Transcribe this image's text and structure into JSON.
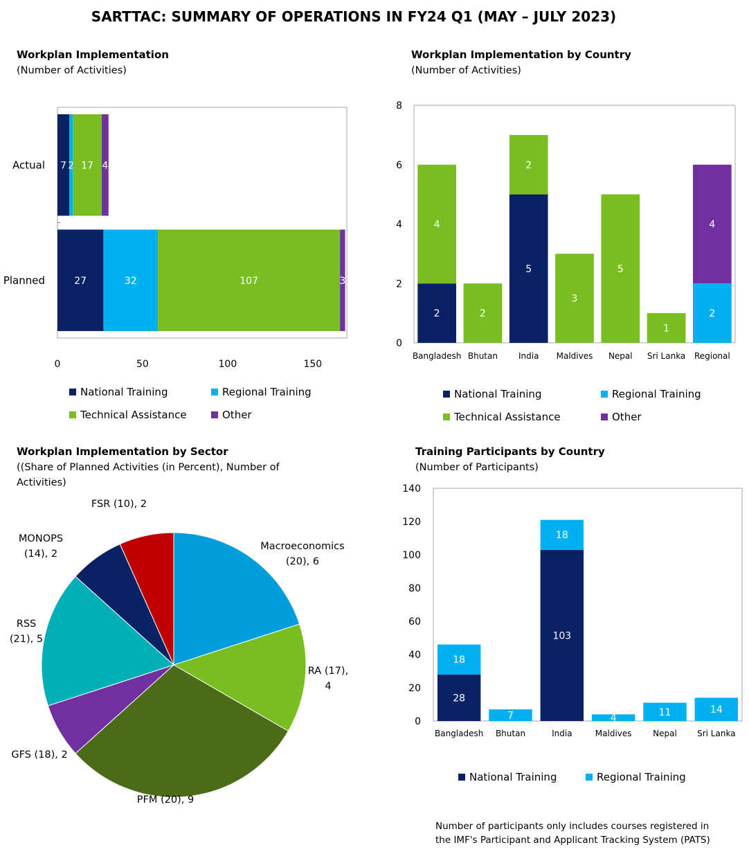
{
  "title": "SARTTAC: SUMMARY OF OPERATIONS IN FY24 Q1 (MAY – JULY 2023)",
  "colors": {
    "national": "#0a2263",
    "regional": "#00b0f0",
    "ta": "#78be20",
    "other": "#7030a0",
    "axis": "#808080"
  },
  "chart_data": [
    {
      "id": "implementation",
      "type": "bar",
      "orientation": "horizontal",
      "stacked": true,
      "title": "Workplan Implementation",
      "subtitle": "(Number of Activities)",
      "categories": [
        "Actual",
        "Planned"
      ],
      "series": [
        {
          "name": "National Training",
          "values": [
            7,
            27
          ]
        },
        {
          "name": "Regional Training",
          "values": [
            2,
            32
          ]
        },
        {
          "name": "Technical Assistance",
          "values": [
            17,
            107
          ]
        },
        {
          "name": "Other",
          "values": [
            4,
            3
          ]
        }
      ],
      "xlim": [
        0,
        170
      ],
      "xticks": [
        "0",
        "50",
        "100",
        "150"
      ],
      "legend": "bottom"
    },
    {
      "id": "by_country",
      "type": "bar",
      "stacked": true,
      "title": "Workplan Implementation by Country",
      "subtitle": "(Number of Activities)",
      "categories": [
        "Bangladesh",
        "Bhutan",
        "India",
        "Maldives",
        "Nepal",
        "Sri Lanka",
        "Regional"
      ],
      "series": [
        {
          "name": "National Training",
          "values": [
            2,
            0,
            5,
            0,
            0,
            0,
            0
          ]
        },
        {
          "name": "Regional Training",
          "values": [
            0,
            0,
            0,
            0,
            0,
            0,
            2
          ]
        },
        {
          "name": "Technical Assistance",
          "values": [
            4,
            2,
            2,
            3,
            5,
            1,
            0
          ]
        },
        {
          "name": "Other",
          "values": [
            0,
            0,
            0,
            0,
            0,
            0,
            4
          ]
        }
      ],
      "ylim": [
        0,
        8
      ],
      "yticks": [
        "0",
        "2",
        "4",
        "6",
        "8"
      ],
      "legend": "bottom"
    },
    {
      "id": "by_sector",
      "type": "pie",
      "title": "Workplan Implementation by Sector",
      "subtitle": "((Share of Planned Activities (in Percent), Number of Activities)",
      "slices": [
        {
          "label": "Macroeconomics (20), 6",
          "value": 6,
          "color": "#009ddc"
        },
        {
          "label": "RA (17), 4",
          "value": 4,
          "color": "#78be20"
        },
        {
          "label": "PFM (20), 9",
          "value": 9,
          "color": "#4a6b17"
        },
        {
          "label": "GFS (18), 2",
          "value": 2,
          "color": "#7030a0"
        },
        {
          "label": "RSS (21), 5",
          "value": 5,
          "color": "#00afb8"
        },
        {
          "label": "MONOPS (14), 2",
          "value": 2,
          "color": "#0a2263"
        },
        {
          "label": "FSR (10), 2",
          "value": 2,
          "color": "#c00000"
        }
      ]
    },
    {
      "id": "participants",
      "type": "bar",
      "stacked": true,
      "title": "Training Participants by Country",
      "subtitle": "(Number of Participants)",
      "categories": [
        "Bangladesh",
        "Bhutan",
        "India",
        "Maldives",
        "Nepal",
        "Sri Lanka"
      ],
      "series": [
        {
          "name": "National Training",
          "values": [
            28,
            0,
            103,
            0,
            0,
            0
          ]
        },
        {
          "name": "Regional Training",
          "values": [
            18,
            7,
            18,
            4,
            11,
            14
          ]
        }
      ],
      "ylim": [
        0,
        140
      ],
      "yticks": [
        "0",
        "20",
        "40",
        "60",
        "80",
        "100",
        "120",
        "140"
      ],
      "legend": "bottom",
      "note": "Number of participants only includes courses registered in the IMF's Participant and Applicant Tracking System (PATS)"
    }
  ]
}
